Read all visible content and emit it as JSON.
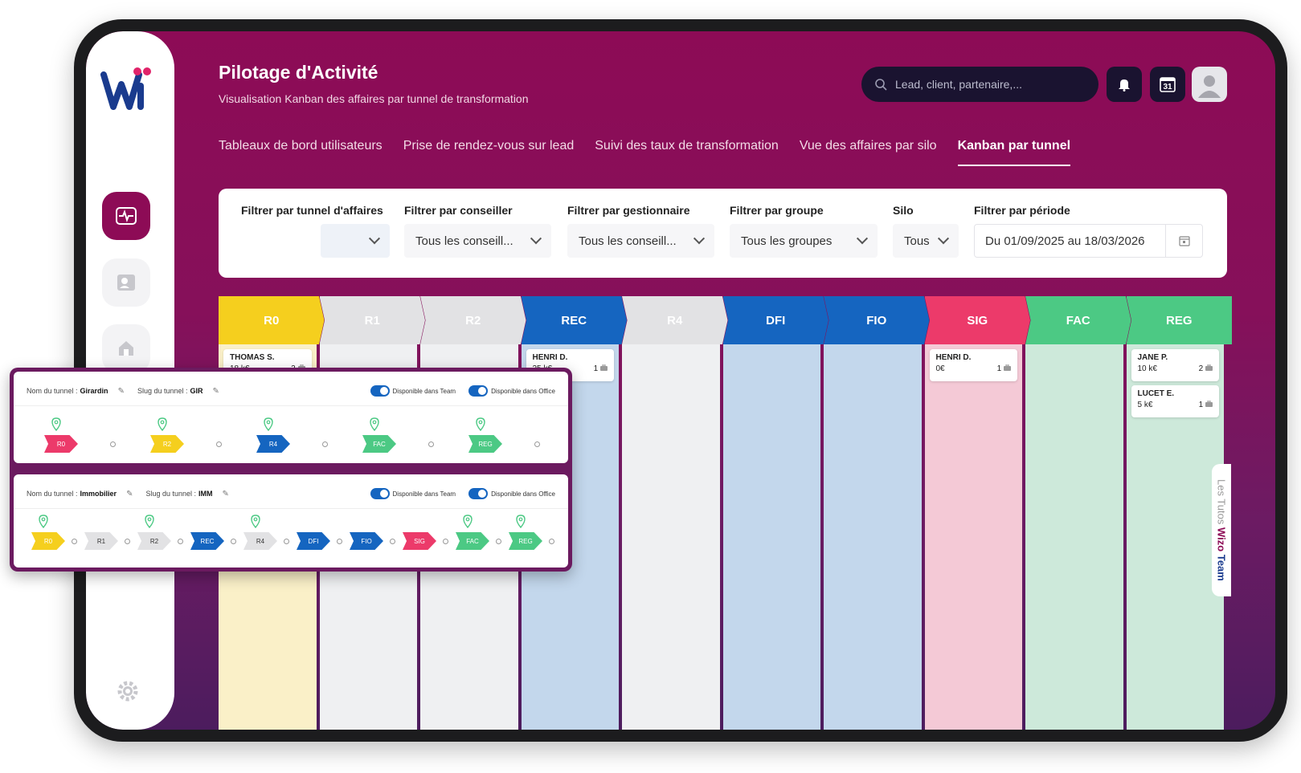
{
  "header": {
    "title": "Pilotage d'Activité",
    "subtitle": "Visualisation Kanban des affaires par tunnel de transformation",
    "search_placeholder": "Lead, client, partenaire,...",
    "calendar_day": "31"
  },
  "tabs": [
    {
      "label": "Tableaux de bord utilisateurs",
      "active": false
    },
    {
      "label": "Prise de rendez-vous sur lead",
      "active": false
    },
    {
      "label": "Suivi des taux de transformation",
      "active": false
    },
    {
      "label": "Vue des affaires par silo",
      "active": false
    },
    {
      "label": "Kanban par tunnel",
      "active": true
    }
  ],
  "filters": {
    "tunnel_label": "Filtrer par tunnel d'affaires",
    "tunnel_value": "",
    "conseiller_label": "Filtrer par conseiller",
    "conseiller_value": "Tous les conseill...",
    "gestionnaire_label": "Filtrer par gestionnaire",
    "gestionnaire_value": "Tous les conseill...",
    "groupe_label": "Filtrer par groupe",
    "groupe_value": "Tous les groupes",
    "silo_label": "Silo",
    "silo_value": "Tous",
    "periode_label": "Filtrer par période",
    "periode_value": "Du 01/09/2025 au 18/03/2026"
  },
  "kanban": {
    "columns": [
      {
        "label": "R0",
        "head": "#f5cf1e",
        "body": "#faf0c8"
      },
      {
        "label": "R1",
        "head": "#e2e2e4",
        "body": "#eff0f2"
      },
      {
        "label": "R2",
        "head": "#e2e2e4",
        "body": "#eff0f2"
      },
      {
        "label": "REC",
        "head": "#1565c0",
        "body": "#c3d7ec"
      },
      {
        "label": "R4",
        "head": "#e2e2e4",
        "body": "#eff0f2"
      },
      {
        "label": "DFI",
        "head": "#1565c0",
        "body": "#c3d7ec"
      },
      {
        "label": "FIO",
        "head": "#1565c0",
        "body": "#c3d7ec"
      },
      {
        "label": "SIG",
        "head": "#ec3a6a",
        "body": "#f4c9d6"
      },
      {
        "label": "FAC",
        "head": "#4cc984",
        "body": "#cde9da"
      },
      {
        "label": "REG",
        "head": "#4cc984",
        "body": "#cde9da"
      }
    ],
    "cards": [
      {
        "col": 0,
        "name": "THOMAS S.",
        "amount": "18 k€",
        "count": "2"
      },
      {
        "col": 3,
        "name": "HENRI D.",
        "amount": "25 k€",
        "count": "1"
      },
      {
        "col": 7,
        "name": "HENRI D.",
        "amount": "0€",
        "count": "1"
      },
      {
        "col": 9,
        "name": "JANE P.",
        "amount": "10 k€",
        "count": "2"
      },
      {
        "col": 9,
        "name": "LUCET E.",
        "amount": "5 k€",
        "count": "1"
      }
    ]
  },
  "tunnels": [
    {
      "name_label": "Nom du tunnel :",
      "name": "Girardin",
      "slug_label": "Slug du tunnel :",
      "slug": "GIR",
      "toggle_team": "Disponible dans Team",
      "toggle_office": "Disponible dans Office",
      "steps": [
        {
          "label": "R0",
          "color": "#ec3a6a"
        },
        {
          "label": "R2",
          "color": "#f5cf1e"
        },
        {
          "label": "R4",
          "color": "#1565c0"
        },
        {
          "label": "FAC",
          "color": "#4cc984"
        },
        {
          "label": "REG",
          "color": "#4cc984"
        }
      ]
    },
    {
      "name_label": "Nom du tunnel :",
      "name": "Immobilier",
      "slug_label": "Slug du tunnel :",
      "slug": "IMM",
      "toggle_team": "Disponible dans Team",
      "toggle_office": "Disponible dans Office",
      "steps": [
        {
          "label": "R0",
          "color": "#f5cf1e",
          "pin": true
        },
        {
          "label": "R1",
          "color": "#e2e2e4",
          "pin": false
        },
        {
          "label": "R2",
          "color": "#e2e2e4",
          "pin": true
        },
        {
          "label": "REC",
          "color": "#1565c0",
          "pin": false
        },
        {
          "label": "R4",
          "color": "#e2e2e4",
          "pin": true
        },
        {
          "label": "DFI",
          "color": "#1565c0",
          "pin": false
        },
        {
          "label": "FIO",
          "color": "#1565c0",
          "pin": false
        },
        {
          "label": "SIG",
          "color": "#ec3a6a",
          "pin": false
        },
        {
          "label": "FAC",
          "color": "#4cc984",
          "pin": true
        },
        {
          "label": "REG",
          "color": "#4cc984",
          "pin": true
        }
      ]
    }
  ],
  "side_tab": {
    "prefix": "Les Tutos",
    "brand": "Wizo",
    "suffix": "Team"
  }
}
